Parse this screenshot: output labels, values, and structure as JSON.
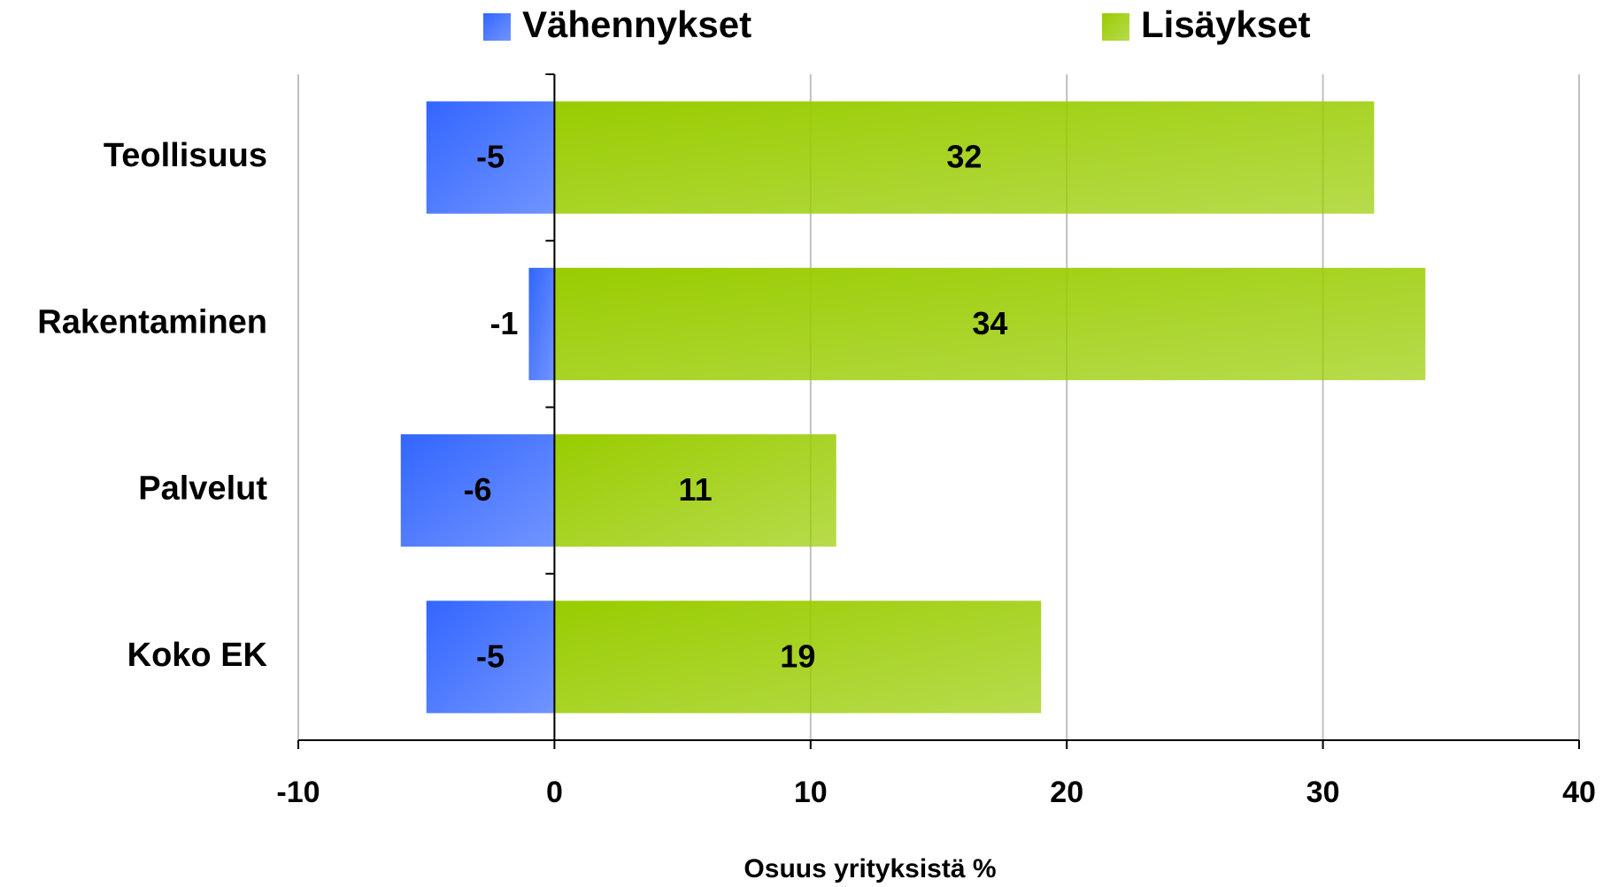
{
  "chart_data": {
    "type": "hbar-diverging",
    "categories": [
      "Teollisuus",
      "Rakentaminen",
      "Palvelut",
      "Koko EK"
    ],
    "series": [
      {
        "name": "Vähennykset",
        "color": "#3366ff",
        "values": [
          -5,
          -1,
          -6,
          -5
        ]
      },
      {
        "name": "Lisäykset",
        "color": "#99cc00",
        "values": [
          32,
          34,
          11,
          19
        ]
      }
    ],
    "xlim": [
      -10,
      40
    ],
    "xticks": [
      -10,
      0,
      10,
      20,
      30,
      40
    ],
    "xlabel": "Osuus yrityksistä %",
    "grid": true,
    "legend": "top"
  }
}
